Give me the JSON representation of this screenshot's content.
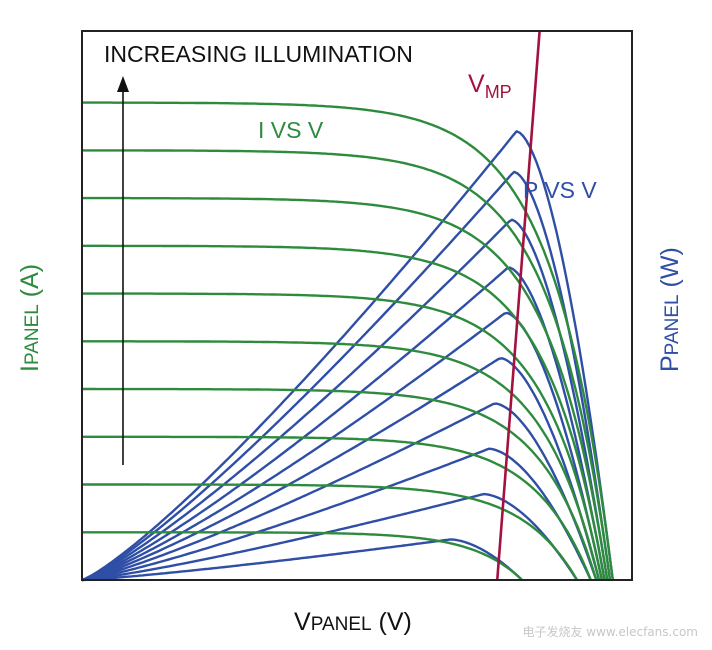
{
  "chart_data": {
    "type": "line",
    "title": "",
    "xlabel": {
      "main": "V",
      "sub": "PANEL",
      "unit": " (V)"
    },
    "ylabel_left": {
      "main": "I",
      "sub": "PANEL",
      "unit": " (A)"
    },
    "ylabel_right": {
      "main": "P",
      "sub": "PANEL",
      "unit": " (W)"
    },
    "annotations": {
      "increasing": "INCREASING ILLUMINATION",
      "vmp_main": "V",
      "vmp_sub": "MP",
      "ivsv": "I VS V",
      "pvsv": "P VS V"
    },
    "series": [
      {
        "name": "I VS V",
        "color": "#2e8b3e",
        "curves": [
          {
            "isc": 1.0,
            "voc": 0.965
          },
          {
            "isc": 0.9,
            "voc": 0.96
          },
          {
            "isc": 0.8,
            "voc": 0.955
          },
          {
            "isc": 0.7,
            "voc": 0.95
          },
          {
            "isc": 0.6,
            "voc": 0.945
          },
          {
            "isc": 0.5,
            "voc": 0.94
          },
          {
            "isc": 0.4,
            "voc": 0.935
          },
          {
            "isc": 0.3,
            "voc": 0.925
          },
          {
            "isc": 0.2,
            "voc": 0.9
          },
          {
            "isc": 0.1,
            "voc": 0.8
          }
        ]
      },
      {
        "name": "P VS V",
        "color": "#2f4ea6",
        "curves": [
          {
            "vmp": 0.79,
            "pmax": 0.94,
            "voc": 0.965
          },
          {
            "vmp": 0.785,
            "pmax": 0.855,
            "voc": 0.96
          },
          {
            "vmp": 0.78,
            "pmax": 0.755,
            "voc": 0.955
          },
          {
            "vmp": 0.775,
            "pmax": 0.655,
            "voc": 0.95
          },
          {
            "vmp": 0.77,
            "pmax": 0.56,
            "voc": 0.945
          },
          {
            "vmp": 0.76,
            "pmax": 0.465,
            "voc": 0.94
          },
          {
            "vmp": 0.75,
            "pmax": 0.37,
            "voc": 0.935
          },
          {
            "vmp": 0.74,
            "pmax": 0.275,
            "voc": 0.925
          },
          {
            "vmp": 0.73,
            "pmax": 0.18,
            "voc": 0.9
          },
          {
            "vmp": 0.67,
            "pmax": 0.085,
            "voc": 0.8
          }
        ]
      },
      {
        "name": "V MP",
        "color": "#a3123f",
        "points": [
          {
            "v": 0.755,
            "y": 0.0
          },
          {
            "v": 0.832,
            "y": 1.15
          }
        ]
      }
    ],
    "xlim": [
      0,
      1
    ],
    "ylim": [
      0,
      1.15
    ],
    "grid": false,
    "tick_labels": false,
    "watermark": "电子发烧友 www.elecfans.com"
  }
}
